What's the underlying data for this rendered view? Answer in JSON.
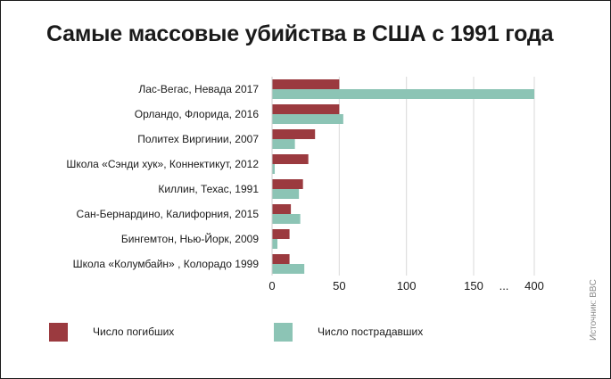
{
  "title": "Самые массовые убийства в США с 1991 года",
  "source": "Источник: BBC",
  "colors": {
    "killed": "#9b3a3f",
    "injured": "#8cc4b5",
    "grid": "#d9d9d9",
    "axis": "#cfcfcf",
    "text": "#1a1a1a"
  },
  "legend": {
    "killed": "Число погибших",
    "injured": "Число пострадавших"
  },
  "chart_data": {
    "type": "bar",
    "orientation": "horizontal",
    "categories": [
      "Лас-Вегас, Невада 2017",
      "Орландо, Флорида, 2016",
      "Политех Виргинии, 2007",
      "Школа «Сэнди хук», Коннектикут, 2012",
      "Киллин, Техас, 1991",
      "Сан-Бернардино, Калифорния, 2015",
      "Бингемтон, Нью-Йорк, 2009",
      "Школа «Колумбайн» , Колорадо 1999"
    ],
    "series": [
      {
        "name": "Число погибших",
        "values": [
          50,
          50,
          32,
          27,
          23,
          14,
          13,
          13
        ]
      },
      {
        "name": "Число пострадавших",
        "values": [
          400,
          53,
          17,
          2,
          20,
          21,
          4,
          24
        ]
      }
    ],
    "xticks": [
      "0",
      "50",
      "100",
      "150",
      "...",
      "400"
    ],
    "xscale": "broken: 0–150 linear, break, 400",
    "grid": true
  }
}
